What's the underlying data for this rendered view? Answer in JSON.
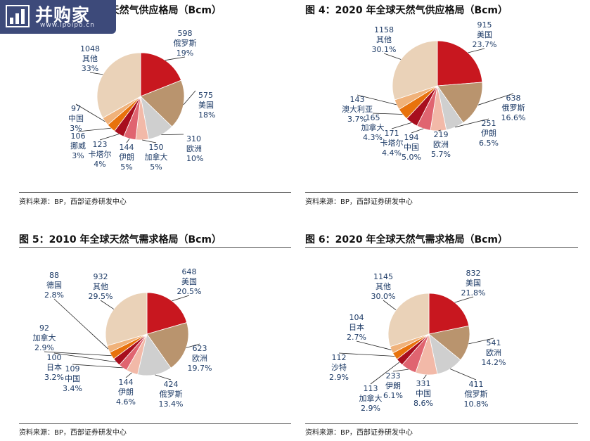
{
  "watermark": {
    "name": "并购家",
    "url": "www.ipoipo.cn"
  },
  "source": "资料来源：BP，西部证券研发中心",
  "chart_data": [
    {
      "type": "pie",
      "title": "图 3：2010 年全球天然气供应格局（Bcm）",
      "slices": [
        {
          "label": "美国",
          "value": 575,
          "pct": "18%",
          "color": "#b9946e"
        },
        {
          "label": "欧洲",
          "value": 310,
          "pct": "10%",
          "color": "#cfcfcf"
        },
        {
          "label": "加拿大",
          "value": 150,
          "pct": "5%",
          "color": "#f2b9a8"
        },
        {
          "label": "伊朗",
          "value": 144,
          "pct": "5%",
          "color": "#e06470"
        },
        {
          "label": "卡塔尔",
          "value": 123,
          "pct": "4%",
          "color": "#a80e1e"
        },
        {
          "label": "挪威",
          "value": 106,
          "pct": "3%",
          "color": "#e8720c"
        },
        {
          "label": "中国",
          "value": 97,
          "pct": "3%",
          "color": "#f0b27a"
        },
        {
          "label": "其他",
          "value": 1048,
          "pct": "33%",
          "color": "#ead2b8"
        },
        {
          "label": "俄罗斯",
          "value": 598,
          "pct": "19%",
          "color": "#c8171f"
        }
      ]
    },
    {
      "type": "pie",
      "title": "图 4：2020 年全球天然气供应格局（Bcm）",
      "slices": [
        {
          "label": "俄罗斯",
          "value": 638,
          "pct": "16.6%",
          "color": "#b9946e"
        },
        {
          "label": "伊朗",
          "value": 251,
          "pct": "6.5%",
          "color": "#cfcfcf"
        },
        {
          "label": "欧洲",
          "value": 219,
          "pct": "5.7%",
          "color": "#f2b9a8"
        },
        {
          "label": "中国",
          "value": 194,
          "pct": "5.0%",
          "color": "#e06470"
        },
        {
          "label": "卡塔尔",
          "value": 171,
          "pct": "4.4%",
          "color": "#a80e1e"
        },
        {
          "label": "加拿大",
          "value": 165,
          "pct": "4.3%",
          "color": "#e8720c"
        },
        {
          "label": "澳大利亚",
          "value": 143,
          "pct": "3.7%",
          "color": "#f0b27a"
        },
        {
          "label": "其他",
          "value": 1158,
          "pct": "30.1%",
          "color": "#ead2b8"
        },
        {
          "label": "美国",
          "value": 915,
          "pct": "23.7%",
          "color": "#c8171f"
        }
      ]
    },
    {
      "type": "pie",
      "title": "图 5：2010 年全球天然气需求格局（Bcm）",
      "slices": [
        {
          "label": "欧洲",
          "value": 623,
          "pct": "19.7%",
          "color": "#b9946e"
        },
        {
          "label": "俄罗斯",
          "value": 424,
          "pct": "13.4%",
          "color": "#cfcfcf"
        },
        {
          "label": "伊朗",
          "value": 144,
          "pct": "4.6%",
          "color": "#f2b9a8"
        },
        {
          "label": "中国",
          "value": 109,
          "pct": "3.4%",
          "color": "#e06470"
        },
        {
          "label": "日本",
          "value": 100,
          "pct": "3.2%",
          "color": "#a80e1e"
        },
        {
          "label": "加拿大",
          "value": 92,
          "pct": "2.9%",
          "color": "#e8720c"
        },
        {
          "label": "德国",
          "value": 88,
          "pct": "2.8%",
          "color": "#f0b27a"
        },
        {
          "label": "其他",
          "value": 932,
          "pct": "29.5%",
          "color": "#ead2b8"
        },
        {
          "label": "美国",
          "value": 648,
          "pct": "20.5%",
          "color": "#c8171f"
        }
      ]
    },
    {
      "type": "pie",
      "title": "图 6：2020 年全球天然气需求格局（Bcm）",
      "slices": [
        {
          "label": "欧洲",
          "value": 541,
          "pct": "14.2%",
          "color": "#b9946e"
        },
        {
          "label": "俄罗斯",
          "value": 411,
          "pct": "10.8%",
          "color": "#cfcfcf"
        },
        {
          "label": "中国",
          "value": 331,
          "pct": "8.6%",
          "color": "#f2b9a8"
        },
        {
          "label": "伊朗",
          "value": 233,
          "pct": "6.1%",
          "color": "#e06470"
        },
        {
          "label": "加拿大",
          "value": 113,
          "pct": "2.9%",
          "color": "#a80e1e"
        },
        {
          "label": "沙特",
          "value": 112,
          "pct": "2.9%",
          "color": "#e8720c"
        },
        {
          "label": "日本",
          "value": 104,
          "pct": "2.7%",
          "color": "#f0b27a"
        },
        {
          "label": "其他",
          "value": 1145,
          "pct": "30.0%",
          "color": "#ead2b8"
        },
        {
          "label": "美国",
          "value": 832,
          "pct": "21.8%",
          "color": "#c8171f"
        }
      ]
    }
  ]
}
